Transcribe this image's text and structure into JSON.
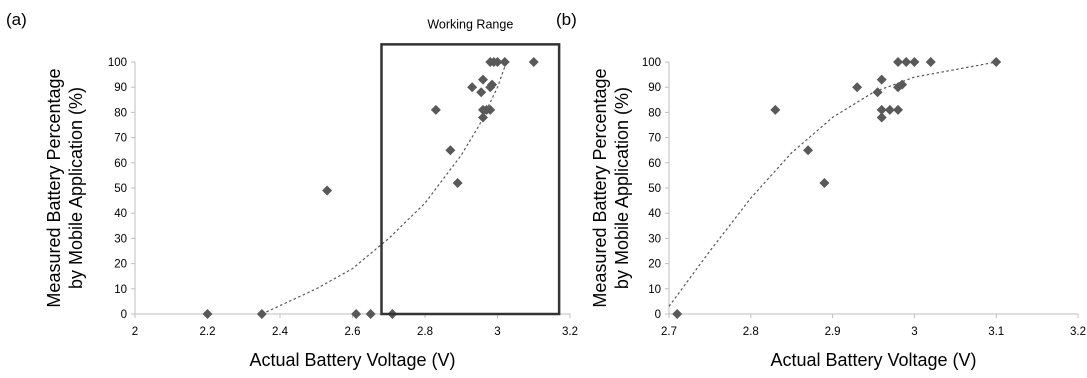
{
  "panels": {
    "a": {
      "label": "(a)"
    },
    "b": {
      "label": "(b)"
    }
  },
  "colors": {
    "marker": "#595959",
    "trend": "#595959",
    "axis": "#bfbfbf",
    "box": "#333333"
  },
  "chart_data": [
    {
      "type": "scatter",
      "title": "",
      "xlabel": "Actual Battery Voltage (V)",
      "ylabel": [
        "Measured Battery Percentage",
        "by Mobile Application (%)"
      ],
      "xlim": [
        2,
        3.2
      ],
      "ylim": [
        0,
        100
      ],
      "x_ticks": [
        2,
        2.2,
        2.4,
        2.6,
        2.8,
        3,
        3.2
      ],
      "x_tick_labels": [
        "2",
        "2.2",
        "2.4",
        "2.6",
        "2.8",
        "3",
        "3.2"
      ],
      "y_ticks": [
        0,
        10,
        20,
        30,
        40,
        50,
        60,
        70,
        80,
        90,
        100
      ],
      "y_tick_labels": [
        "0",
        "10",
        "20",
        "30",
        "40",
        "50",
        "60",
        "70",
        "80",
        "90",
        "100"
      ],
      "grid": false,
      "marker": "diamond",
      "points": [
        {
          "x": 2.2,
          "y": 0
        },
        {
          "x": 2.35,
          "y": 0
        },
        {
          "x": 2.61,
          "y": 0
        },
        {
          "x": 2.65,
          "y": 0
        },
        {
          "x": 2.71,
          "y": 0
        },
        {
          "x": 2.53,
          "y": 49
        },
        {
          "x": 2.83,
          "y": 81
        },
        {
          "x": 2.87,
          "y": 65
        },
        {
          "x": 2.89,
          "y": 52
        },
        {
          "x": 2.93,
          "y": 90
        },
        {
          "x": 2.955,
          "y": 88
        },
        {
          "x": 2.96,
          "y": 93
        },
        {
          "x": 2.96,
          "y": 81
        },
        {
          "x": 2.96,
          "y": 78
        },
        {
          "x": 2.97,
          "y": 81
        },
        {
          "x": 2.98,
          "y": 90
        },
        {
          "x": 2.985,
          "y": 91
        },
        {
          "x": 2.98,
          "y": 81
        },
        {
          "x": 2.98,
          "y": 100
        },
        {
          "x": 2.99,
          "y": 100
        },
        {
          "x": 3.0,
          "y": 100
        },
        {
          "x": 3.02,
          "y": 100
        },
        {
          "x": 3.1,
          "y": 100
        }
      ],
      "trendline": {
        "style": "dotted",
        "x": [
          2.35,
          2.5,
          2.6,
          2.7,
          2.8,
          2.9,
          2.95,
          3.0,
          3.02
        ],
        "y": [
          0,
          10,
          18,
          30,
          44,
          63,
          75,
          90,
          98
        ]
      },
      "annotation": {
        "text": "Working Range",
        "x_range": [
          2.68,
          3.17
        ],
        "y_range": [
          0,
          107
        ]
      }
    },
    {
      "type": "scatter",
      "title": "",
      "xlabel": "Actual Battery Voltage (V)",
      "ylabel": [
        "Measured Battery Percentage",
        "by Mobile Application (%)"
      ],
      "xlim": [
        2.7,
        3.2
      ],
      "ylim": [
        0,
        100
      ],
      "x_ticks": [
        2.7,
        2.8,
        2.9,
        3,
        3.1,
        3.2
      ],
      "x_tick_labels": [
        "2.7",
        "2.8",
        "2.9",
        "3",
        "3.1",
        "3.2"
      ],
      "y_ticks": [
        0,
        10,
        20,
        30,
        40,
        50,
        60,
        70,
        80,
        90,
        100
      ],
      "y_tick_labels": [
        "0",
        "10",
        "20",
        "30",
        "40",
        "50",
        "60",
        "70",
        "80",
        "90",
        "100"
      ],
      "grid": false,
      "marker": "diamond",
      "points": [
        {
          "x": 2.71,
          "y": 0
        },
        {
          "x": 2.83,
          "y": 81
        },
        {
          "x": 2.87,
          "y": 65
        },
        {
          "x": 2.89,
          "y": 52
        },
        {
          "x": 2.93,
          "y": 90
        },
        {
          "x": 2.955,
          "y": 88
        },
        {
          "x": 2.96,
          "y": 93
        },
        {
          "x": 2.96,
          "y": 81
        },
        {
          "x": 2.96,
          "y": 78
        },
        {
          "x": 2.97,
          "y": 81
        },
        {
          "x": 2.98,
          "y": 81
        },
        {
          "x": 2.98,
          "y": 90
        },
        {
          "x": 2.985,
          "y": 91
        },
        {
          "x": 2.98,
          "y": 100
        },
        {
          "x": 2.99,
          "y": 100
        },
        {
          "x": 3.0,
          "y": 100
        },
        {
          "x": 3.02,
          "y": 100
        },
        {
          "x": 3.1,
          "y": 100
        }
      ],
      "trendline": {
        "style": "dotted",
        "x": [
          2.7,
          2.75,
          2.8,
          2.85,
          2.9,
          2.95,
          3.0,
          3.05,
          3.1
        ],
        "y": [
          3,
          25,
          46,
          64,
          78,
          88,
          94,
          97,
          100
        ]
      }
    }
  ]
}
